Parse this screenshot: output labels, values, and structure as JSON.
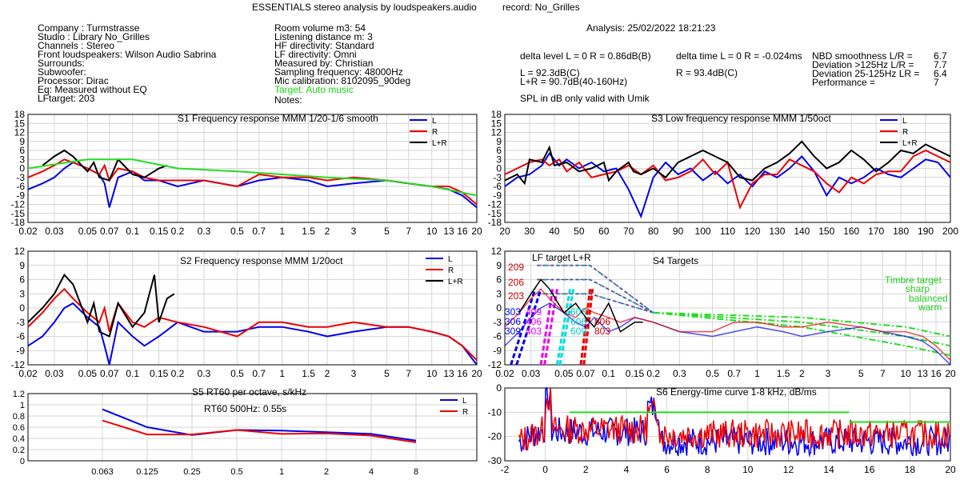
{
  "header": {
    "title": "ESSENTIALS stereo analysis by loudspeakers.audio",
    "record": "record: No_Grilles",
    "analysis": "Analysis: 25/02/2022 18:21:23"
  },
  "info_left": [
    "Company : Turmstrasse",
    "Studio : Library No_Grilles",
    "Channels : Stereo",
    "Front loudspeakers: Wilson Audio Sabrina",
    "Surrounds:",
    "Subwoofer:",
    "Processor: Dirac",
    "Eq: Measured without EQ",
    "LFtarget: 203"
  ],
  "info_mid": [
    "Room volume m3: 54",
    "Listening distance m: 3",
    "HF directivity: Standard",
    "LF directivity: Omni",
    "Measured by: Christian",
    "Sampling frequency: 48000Hz",
    "Mic calibration: 8102095_90deg"
  ],
  "info_mid_target": "Target: Auto music",
  "info_mid_notes": "Notes:",
  "levels": {
    "delta_level": "delta level L = 0  R = 0.86dB(B)",
    "delta_time": "delta time  L = 0  R = -0.024ms",
    "L_line": "L =      92.3dB(C)",
    "LR_line": "L+R = 90.7dB(40-160Hz)",
    "R_line": "R =      93.4dB(C)",
    "spl_note": "SPL in dB only valid with Umik"
  },
  "stats": [
    {
      "label": "NBD smoothness L/R =",
      "value": "6.7"
    },
    {
      "label": "Deviation >125Hz L/R =",
      "value": "7.7"
    },
    {
      "label": "Deviation 25-125Hz LR =",
      "value": "6.4"
    },
    {
      "label": "Performance =",
      "value": "7"
    }
  ],
  "colors": {
    "L": "#0000ee",
    "R": "#ee0000",
    "LR": "#000000",
    "target": "#22dd22",
    "magenta": "#ee00ee",
    "cyan": "#00dddd",
    "grid": "#d6d6d6"
  },
  "chart_data": [
    {
      "id": "S1",
      "type": "line",
      "title": "S1  Frequency response MMM 1/20-1/6 smooth",
      "x_scale": "log",
      "xlim": [
        0.02,
        20
      ],
      "ylim": [
        -18,
        18
      ],
      "yticks": [
        18,
        15,
        12,
        9,
        6,
        3,
        0,
        -3,
        -6,
        -9,
        -12,
        -15,
        -18
      ],
      "xticks": [
        "0.02",
        "0.03",
        "0.05",
        "0.07",
        "0.1",
        "0.15",
        "0.2",
        "0.3",
        "0.5",
        "0.7",
        "1",
        "1.5",
        "2",
        "3",
        "5",
        "7",
        "10",
        "13",
        "16",
        "20"
      ],
      "legend": [
        "L",
        "R",
        "L+R"
      ],
      "series": [
        {
          "name": "L",
          "x": [
            0.02,
            0.025,
            0.03,
            0.035,
            0.04,
            0.05,
            0.06,
            0.065,
            0.07,
            0.08,
            0.1,
            0.12,
            0.15,
            0.2,
            0.3,
            0.5,
            0.7,
            1,
            1.5,
            2,
            3,
            5,
            7,
            10,
            13,
            16,
            20
          ],
          "y": [
            -7,
            -5,
            -3,
            0,
            2,
            0,
            -2,
            -5,
            -13,
            -3,
            -1,
            -4,
            -4,
            -6,
            -4,
            -6,
            -4,
            -3,
            -4,
            -6,
            -5,
            -4,
            -5,
            -6,
            -7,
            -9,
            -13
          ]
        },
        {
          "name": "R",
          "x": [
            0.02,
            0.025,
            0.03,
            0.035,
            0.04,
            0.05,
            0.06,
            0.065,
            0.07,
            0.08,
            0.1,
            0.12,
            0.15,
            0.2,
            0.3,
            0.5,
            0.7,
            1,
            1.5,
            2,
            3,
            5,
            7,
            10,
            13,
            16,
            20
          ],
          "y": [
            -3,
            -1,
            1,
            3,
            2,
            0,
            -2,
            1,
            -4,
            0,
            -1,
            -3,
            -4,
            -4,
            -4,
            -6,
            -2,
            -3,
            -3,
            -4,
            -3,
            -4,
            -5,
            -6,
            -6,
            -8,
            -12
          ]
        },
        {
          "name": "L+R",
          "x": [
            0.025,
            0.03,
            0.035,
            0.04,
            0.05,
            0.055,
            0.06,
            0.07,
            0.08,
            0.1,
            0.12,
            0.15,
            0.17
          ],
          "y": [
            1,
            4,
            6,
            4,
            -1,
            2,
            -3,
            -4,
            3,
            -2,
            -3,
            0,
            1
          ]
        },
        {
          "name": "target",
          "x": [
            0.02,
            0.05,
            0.1,
            0.2,
            0.5,
            1,
            2,
            5,
            10,
            20
          ],
          "y": [
            0,
            3,
            3,
            0,
            -1,
            -2,
            -3,
            -4,
            -6,
            -9
          ]
        }
      ]
    },
    {
      "id": "S2",
      "type": "line",
      "title": "S2  Frequency response MMM 1/20oct",
      "x_scale": "log",
      "xlim": [
        0.02,
        20
      ],
      "ylim": [
        -12,
        12
      ],
      "yticks": [
        12,
        9,
        6,
        3,
        0,
        -3,
        -6,
        -9,
        -12
      ],
      "xticks": [
        "0.02",
        "0.03",
        "0.05",
        "0.07",
        "0.1",
        "0.15",
        "0.2",
        "0.3",
        "0.5",
        "0.7",
        "1",
        "1.5",
        "2",
        "3",
        "5",
        "7",
        "10",
        "13",
        "16",
        "20"
      ],
      "legend": [
        "L",
        "R",
        "L+R"
      ],
      "series": [
        {
          "name": "L",
          "x": [
            0.02,
            0.025,
            0.03,
            0.035,
            0.04,
            0.05,
            0.06,
            0.065,
            0.07,
            0.08,
            0.1,
            0.12,
            0.15,
            0.2,
            0.3,
            0.5,
            0.7,
            1,
            1.5,
            2,
            3,
            5,
            7,
            10,
            13,
            16,
            20
          ],
          "y": [
            -8,
            -6,
            -3,
            0,
            1,
            -2,
            -4,
            -8,
            -12,
            -3,
            -6,
            -8,
            -6,
            -3,
            -5,
            -5,
            -4,
            -4,
            -5,
            -6,
            -5,
            -4,
            -4,
            -5,
            -6,
            -8,
            -12
          ]
        },
        {
          "name": "R",
          "x": [
            0.02,
            0.025,
            0.03,
            0.035,
            0.04,
            0.05,
            0.06,
            0.065,
            0.07,
            0.08,
            0.1,
            0.12,
            0.15,
            0.2,
            0.3,
            0.5,
            0.7,
            1,
            1.5,
            2,
            3,
            5,
            7,
            10,
            13,
            16,
            20
          ],
          "y": [
            -4,
            -1,
            2,
            4,
            2,
            -1,
            -3,
            0,
            -5,
            1,
            -3,
            -4,
            -2,
            -3,
            -4,
            -6,
            -3,
            -3,
            -4,
            -4,
            -3,
            -4,
            -4,
            -5,
            -6,
            -8,
            -11
          ]
        },
        {
          "name": "L+R",
          "x": [
            0.02,
            0.025,
            0.03,
            0.035,
            0.04,
            0.05,
            0.055,
            0.06,
            0.07,
            0.08,
            0.1,
            0.12,
            0.14,
            0.15,
            0.17,
            0.19
          ],
          "y": [
            -3,
            0,
            3,
            7,
            5,
            -3,
            1,
            -5,
            -6,
            1,
            -4,
            -1,
            7,
            -3,
            2,
            3
          ]
        }
      ]
    },
    {
      "id": "S3",
      "type": "line",
      "title": "S3  Low frequency response MMM 1/50oct",
      "x_scale": "linear",
      "xlim": [
        20,
        200
      ],
      "ylim": [
        -18,
        18
      ],
      "yticks": [
        18,
        15,
        12,
        9,
        6,
        3,
        0,
        -3,
        -6,
        -9,
        -12,
        -15,
        -18
      ],
      "xticks": [
        "20",
        "30",
        "40",
        "50",
        "60",
        "70",
        "80",
        "90",
        "100",
        "110",
        "120",
        "130",
        "140",
        "150",
        "160",
        "170",
        "180",
        "190",
        "200"
      ],
      "legend": [
        "L",
        "R",
        "L+R"
      ],
      "series": [
        {
          "name": "L",
          "x": [
            20,
            25,
            30,
            35,
            38,
            42,
            45,
            50,
            55,
            60,
            65,
            70,
            75,
            80,
            85,
            90,
            95,
            100,
            105,
            110,
            115,
            120,
            125,
            130,
            135,
            140,
            145,
            150,
            155,
            160,
            165,
            170,
            175,
            180,
            185,
            190,
            195,
            200
          ],
          "y": [
            -6,
            -3,
            -2,
            1,
            5,
            1,
            3,
            0,
            2,
            -1,
            0,
            -7,
            -16,
            -3,
            2,
            -2,
            0,
            -4,
            -1,
            -5,
            -2,
            -6,
            -1,
            -3,
            0,
            4,
            -1,
            -9,
            -3,
            -5,
            -3,
            0,
            -2,
            -3,
            0,
            3,
            2,
            -3
          ]
        },
        {
          "name": "R",
          "x": [
            20,
            25,
            30,
            35,
            38,
            42,
            45,
            50,
            55,
            60,
            65,
            70,
            75,
            80,
            85,
            90,
            95,
            100,
            105,
            110,
            115,
            120,
            125,
            130,
            135,
            140,
            145,
            150,
            155,
            160,
            165,
            170,
            175,
            180,
            185,
            190,
            195,
            200
          ],
          "y": [
            -2,
            0,
            2,
            3,
            1,
            3,
            -1,
            2,
            -3,
            -2,
            -1,
            1,
            -2,
            1,
            -4,
            -3,
            -1,
            3,
            -2,
            2,
            -13,
            -5,
            -2,
            -2,
            3,
            1,
            -1,
            -5,
            -8,
            -3,
            -5,
            -2,
            -1,
            -1,
            4,
            6,
            4,
            2
          ]
        },
        {
          "name": "L+R",
          "x": [
            20,
            25,
            28,
            30,
            35,
            38,
            40,
            45,
            50,
            55,
            60,
            62,
            65,
            70,
            72,
            75,
            80,
            85,
            90,
            95,
            100,
            105,
            110,
            115,
            120,
            125,
            130,
            135,
            140,
            145,
            150,
            155,
            160,
            165,
            170,
            175,
            180,
            185,
            190,
            195,
            200
          ],
          "y": [
            -4,
            -2,
            -5,
            3,
            2,
            7,
            1,
            2,
            -1,
            0,
            2,
            -4,
            -1,
            2,
            -1,
            -2,
            0,
            -3,
            2,
            4,
            6,
            4,
            2,
            -3,
            -4,
            0,
            2,
            5,
            9,
            4,
            0,
            2,
            6,
            3,
            -1,
            2,
            6,
            5,
            8,
            6,
            4
          ]
        }
      ]
    },
    {
      "id": "S4",
      "type": "line",
      "title": "S4 Targets",
      "x_scale": "log",
      "xlim": [
        0.02,
        20
      ],
      "ylim": [
        -12,
        12
      ],
      "yticks": [
        12,
        9,
        6,
        3,
        0,
        -3,
        -6,
        -9,
        -12
      ],
      "xticks": [
        "0.02",
        "0.03",
        "0.05",
        "0.07",
        "0.1",
        "0.15",
        "0.2",
        "0.3",
        "0.5",
        "0.7",
        "1",
        "1.5",
        "2",
        "3",
        "5",
        "7",
        "10",
        "13",
        "16",
        "20"
      ],
      "annotations": [
        "LF target L+R",
        "209",
        "206",
        "203",
        "303",
        "306",
        "309",
        "409",
        "406",
        "403",
        "603",
        "606",
        "609",
        "806",
        "803",
        "Timbre target",
        "sharp",
        "balanced",
        "warm"
      ],
      "series": [
        {
          "name": "L",
          "x": [
            0.02,
            0.025,
            0.03,
            0.035,
            0.04,
            0.05,
            0.06,
            0.07,
            0.08,
            0.1,
            0.12,
            0.15,
            0.2,
            0.3,
            0.5,
            0.7,
            1,
            1.5,
            2,
            3,
            5,
            7,
            10,
            13,
            16,
            20
          ],
          "y": [
            -8,
            -5,
            -2,
            0,
            1,
            -1,
            -3,
            -4,
            -2,
            -5,
            -4,
            -2,
            -3,
            -5,
            -6,
            -5,
            -4,
            -5,
            -6,
            -5,
            -4,
            -5,
            -6,
            -7,
            -9,
            -12
          ]
        },
        {
          "name": "R",
          "x": [
            0.02,
            0.025,
            0.03,
            0.035,
            0.04,
            0.05,
            0.06,
            0.07,
            0.08,
            0.1,
            0.12,
            0.15,
            0.2,
            0.3,
            0.5,
            0.7,
            1,
            1.5,
            2,
            3,
            5,
            7,
            10,
            13,
            16,
            20
          ],
          "y": [
            -4,
            -1,
            2,
            4,
            2,
            -1,
            -2,
            0,
            -1,
            -2,
            -3,
            -2,
            -3,
            -5,
            -5,
            -3,
            -3,
            -4,
            -4,
            -3,
            -4,
            -5,
            -5,
            -6,
            -8,
            -11
          ]
        },
        {
          "name": "L+R",
          "x": [
            0.025,
            0.03,
            0.035,
            0.04,
            0.05,
            0.06,
            0.07,
            0.08,
            0.1,
            0.12,
            0.15,
            0.17
          ],
          "y": [
            -1,
            3,
            6,
            4,
            -1,
            1,
            -2,
            -4,
            1,
            -5,
            -3,
            -3
          ]
        }
      ]
    },
    {
      "id": "S5",
      "type": "line",
      "title": "S5  RT60 per octave, s/kHz",
      "annotation": "RT60 500Hz: 0.55s",
      "x_scale": "log2",
      "categories": [
        "0.063",
        "0.125",
        "0.25",
        "0.5",
        "1",
        "2",
        "4",
        "8"
      ],
      "ylim": [
        0,
        1.2
      ],
      "yticks": [
        "0",
        "0.2",
        "0.4",
        "0.6",
        "0.8",
        "1",
        "1.2"
      ],
      "legend": [
        "L",
        "R"
      ],
      "series": [
        {
          "name": "L",
          "values": [
            0.92,
            0.6,
            0.46,
            0.55,
            0.54,
            0.51,
            0.48,
            0.36
          ]
        },
        {
          "name": "R",
          "values": [
            0.72,
            0.47,
            0.47,
            0.55,
            0.48,
            0.49,
            0.45,
            0.33
          ]
        }
      ]
    },
    {
      "id": "S6",
      "type": "line",
      "title": "S6  Energy-time curve 1-8 kHz, dB/ms",
      "x_scale": "linear",
      "xlim": [
        -2,
        20
      ],
      "ylim": [
        -30,
        0
      ],
      "xticks": [
        "-2",
        "0",
        "2",
        "4",
        "6",
        "8",
        "10",
        "12",
        "14",
        "16",
        "18",
        "20"
      ],
      "yticks": [
        "0",
        "-10",
        "-20",
        "-30"
      ],
      "thresholds": [
        {
          "x": [
            1.2,
            15
          ],
          "y": -10
        },
        {
          "x": [
            15,
            20
          ],
          "y": -14
        }
      ]
    }
  ]
}
